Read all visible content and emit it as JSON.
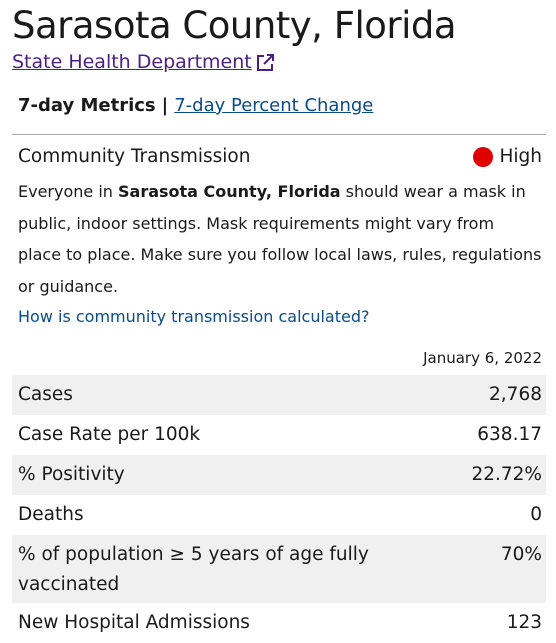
{
  "header": {
    "title": "Sarasota County, Florida",
    "department_link": "State Health Department",
    "external_icon": "external-link-icon"
  },
  "tabs": {
    "active": "7-day Metrics",
    "separator": "|",
    "other": "7-day Percent Change"
  },
  "transmission": {
    "label": "Community Transmission",
    "level": "High",
    "level_color": "#e00000",
    "desc_pre": "Everyone in ",
    "desc_place": "Sarasota County, Florida",
    "desc_post": " should wear a mask in public, indoor settings. Mask requirements might vary from place to place. Make sure you follow local laws, rules, regulations or guidance.",
    "calc_link": "How is community transmission calculated?"
  },
  "metrics": {
    "date": "January 6, 2022",
    "rows": [
      {
        "label": "Cases",
        "value": "2,768"
      },
      {
        "label": "Case Rate per 100k",
        "value": "638.17"
      },
      {
        "label": "% Positivity",
        "value": "22.72%"
      },
      {
        "label": "Deaths",
        "value": "0"
      },
      {
        "label": "% of population ≥ 5 years of age fully vaccinated",
        "value": "70%"
      },
      {
        "label": "New Hospital Admissions",
        "value": "123"
      }
    ]
  },
  "colors": {
    "link_visited": "#4b1f85",
    "link": "#0b4a8b",
    "row_shade": "#f0f0f0"
  }
}
